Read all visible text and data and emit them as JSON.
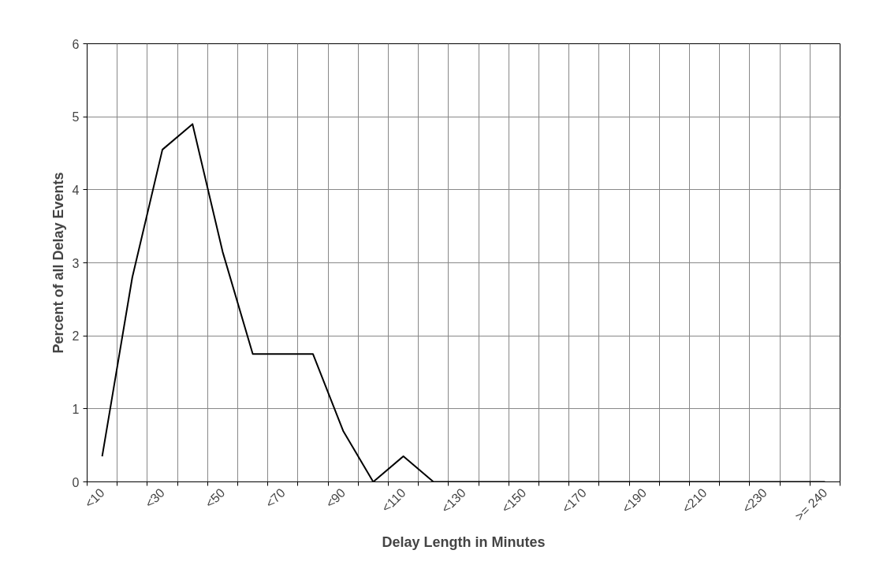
{
  "chart_data": {
    "type": "line",
    "xlabel": "Delay Length in Minutes",
    "ylabel": "Percent of all Delay Events",
    "categories": [
      "<10",
      null,
      "<30",
      null,
      "<50",
      null,
      "<70",
      null,
      "<90",
      null,
      "<110",
      null,
      "<130",
      null,
      "<150",
      null,
      "<170",
      null,
      "<190",
      null,
      "<210",
      null,
      "<230",
      null,
      ">= 240"
    ],
    "series": [
      {
        "color": "#000000",
        "values": [
          0.35,
          2.8,
          4.55,
          4.9,
          3.15,
          1.75,
          1.75,
          1.75,
          0.7,
          0,
          0.35,
          0,
          0,
          0,
          0,
          0,
          0,
          0,
          0,
          0,
          0,
          0,
          0,
          0,
          0
        ]
      }
    ],
    "ylim": [
      0,
      6
    ],
    "yticks": [
      0,
      1,
      2,
      3,
      4,
      5,
      6
    ],
    "grid": true,
    "marker": "none",
    "line_style": "solid"
  }
}
